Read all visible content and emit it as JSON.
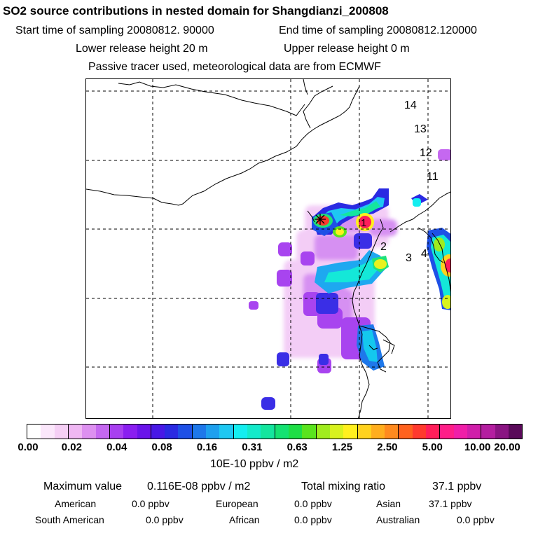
{
  "header": {
    "title": "SO2 source contributions in nested domain for Shangdianzi_200808",
    "start_time": "Start time of sampling 20080812. 90000",
    "end_time": "End time of sampling 20080812.120000",
    "lower_height": "Lower release height   20 m",
    "upper_height": "Upper release height    0 m",
    "tracer_note": "Passive tracer used, meteorological data are from ECMWF"
  },
  "map": {
    "station_marker": "star",
    "region_labels": [
      "14",
      "13",
      "12",
      "11",
      "1",
      "2",
      "3",
      "4"
    ]
  },
  "colorbar": {
    "colors": [
      "#ffffff",
      "#fbe7fb",
      "#f5cff5",
      "#efb7f3",
      "#dd90f0",
      "#c568f0",
      "#a83ff0",
      "#8a1ef0",
      "#6a14ea",
      "#4818e6",
      "#2a2ae2",
      "#1e50e6",
      "#1e78ea",
      "#1ea0ee",
      "#1ec8f2",
      "#14eef0",
      "#14eaca",
      "#14e69e",
      "#14e272",
      "#1ede46",
      "#5ae41e",
      "#a0ec1e",
      "#d8f21e",
      "#fff01e",
      "#ffd21e",
      "#ffae1e",
      "#ff8a1e",
      "#ff621e",
      "#ff3a2e",
      "#ff1e5a",
      "#ff1e88",
      "#f01ea8",
      "#d01eaa",
      "#b41ea0",
      "#8a1482",
      "#5a0a5a"
    ],
    "tick_labels": [
      "0.00",
      "0.02",
      "0.04",
      "0.08",
      "0.16",
      "0.31",
      "0.63",
      "1.25",
      "2.50",
      "5.00",
      "10.00",
      "20.00"
    ],
    "unit": "10E-10 ppbv / m2"
  },
  "summary": {
    "max_label": "Maximum value",
    "max_value": "0.116E-08 ppbv / m2",
    "total_label": "Total mixing ratio",
    "total_value": "37.1 ppbv",
    "regions": [
      {
        "name": "American",
        "value": "0.0 ppbv"
      },
      {
        "name": "European",
        "value": "0.0 ppbv"
      },
      {
        "name": "Asian",
        "value": "37.1 ppbv"
      },
      {
        "name": "South American",
        "value": "0.0 ppbv"
      },
      {
        "name": "African",
        "value": "0.0 ppbv"
      },
      {
        "name": "Australian",
        "value": "0.0 ppbv"
      }
    ]
  }
}
